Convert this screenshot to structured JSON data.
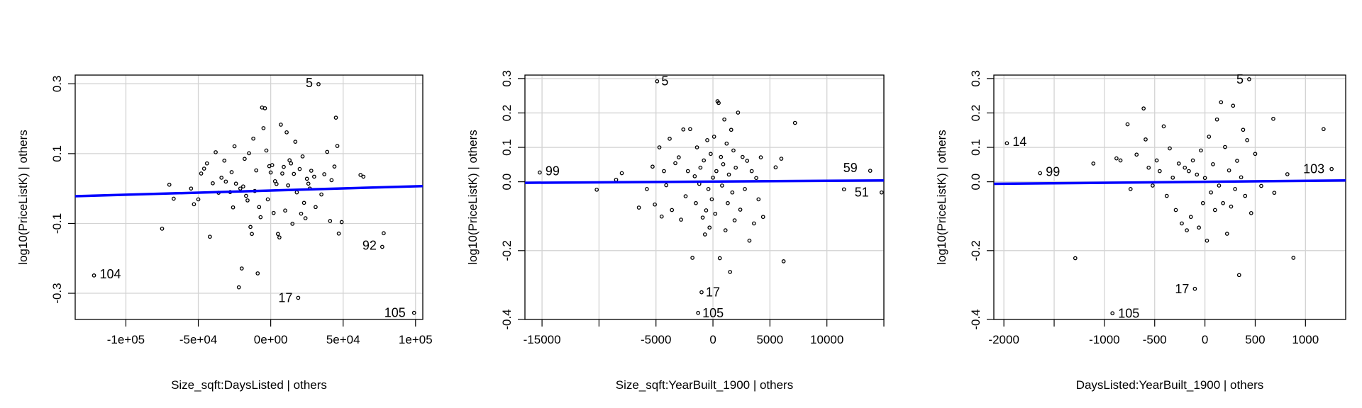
{
  "chart_data": [
    {
      "type": "scatter",
      "title": "",
      "xlabel": "Size_sqft:DaysListed | others",
      "ylabel": "log10(PriceListK)  | others",
      "xlim": [
        -135000,
        105000
      ],
      "ylim": [
        -0.375,
        0.325
      ],
      "xticks": [
        -100000,
        -50000,
        0,
        50000,
        100000
      ],
      "xtick_labels": [
        "-1e+05",
        "-5e+04",
        "0e+00",
        "5e+04",
        "1e+05"
      ],
      "yticks": [
        -0.3,
        -0.1,
        0.1,
        0.3
      ],
      "ytick_labels": [
        "-0.3",
        "-0.1",
        "0.1",
        "0.3"
      ],
      "grid": true,
      "fit_line": {
        "color": "#0000ff",
        "x": [
          -135000,
          105000
        ],
        "y": [
          -0.022,
          0.007
        ]
      },
      "points": [
        {
          "x": -122000,
          "y": -0.249,
          "label": "104"
        },
        {
          "x": -75000,
          "y": -0.115
        },
        {
          "x": -70000,
          "y": 0.011
        },
        {
          "x": -67000,
          "y": -0.029
        },
        {
          "x": -55000,
          "y": 0.0
        },
        {
          "x": -53000,
          "y": -0.045
        },
        {
          "x": -50000,
          "y": -0.031
        },
        {
          "x": -48000,
          "y": 0.043
        },
        {
          "x": -46000,
          "y": 0.057
        },
        {
          "x": -44000,
          "y": 0.072
        },
        {
          "x": -42000,
          "y": -0.138
        },
        {
          "x": -40000,
          "y": 0.015
        },
        {
          "x": -38000,
          "y": 0.104
        },
        {
          "x": -36000,
          "y": -0.012
        },
        {
          "x": -34000,
          "y": 0.031
        },
        {
          "x": -32000,
          "y": 0.08
        },
        {
          "x": -31000,
          "y": 0.02
        },
        {
          "x": -28000,
          "y": -0.01
        },
        {
          "x": -27000,
          "y": 0.047
        },
        {
          "x": -26000,
          "y": -0.054
        },
        {
          "x": -25000,
          "y": 0.121
        },
        {
          "x": -24000,
          "y": 0.014
        },
        {
          "x": -22000,
          "y": -0.283
        },
        {
          "x": -21000,
          "y": 0.0
        },
        {
          "x": -20000,
          "y": -0.229
        },
        {
          "x": -19000,
          "y": 0.006
        },
        {
          "x": -18000,
          "y": 0.085
        },
        {
          "x": -17000,
          "y": -0.021
        },
        {
          "x": -16000,
          "y": -0.034
        },
        {
          "x": -15000,
          "y": 0.101
        },
        {
          "x": -14000,
          "y": -0.11
        },
        {
          "x": -13000,
          "y": -0.13
        },
        {
          "x": -12000,
          "y": 0.143
        },
        {
          "x": -11000,
          "y": -0.007
        },
        {
          "x": -10000,
          "y": 0.052
        },
        {
          "x": -9000,
          "y": -0.243
        },
        {
          "x": -8000,
          "y": -0.053
        },
        {
          "x": -7000,
          "y": -0.082
        },
        {
          "x": -6000,
          "y": 0.232
        },
        {
          "x": -5000,
          "y": 0.173
        },
        {
          "x": -4000,
          "y": 0.23
        },
        {
          "x": -3000,
          "y": 0.109
        },
        {
          "x": -2000,
          "y": -0.031
        },
        {
          "x": -1000,
          "y": 0.064
        },
        {
          "x": 0,
          "y": 0.046
        },
        {
          "x": 1000,
          "y": 0.067
        },
        {
          "x": 2000,
          "y": -0.07
        },
        {
          "x": 3000,
          "y": 0.021
        },
        {
          "x": 4000,
          "y": 0.013
        },
        {
          "x": 5000,
          "y": -0.13
        },
        {
          "x": 6000,
          "y": -0.14
        },
        {
          "x": 7000,
          "y": 0.183
        },
        {
          "x": 8000,
          "y": 0.043
        },
        {
          "x": 9000,
          "y": 0.062
        },
        {
          "x": 10000,
          "y": -0.063
        },
        {
          "x": 11000,
          "y": 0.161
        },
        {
          "x": 12000,
          "y": 0.009
        },
        {
          "x": 13000,
          "y": 0.081
        },
        {
          "x": 14000,
          "y": 0.072
        },
        {
          "x": 15000,
          "y": -0.101
        },
        {
          "x": 16000,
          "y": 0.042
        },
        {
          "x": 17000,
          "y": 0.134
        },
        {
          "x": 18000,
          "y": -0.011
        },
        {
          "x": 19000,
          "y": -0.313,
          "label": "17"
        },
        {
          "x": 20000,
          "y": 0.056
        },
        {
          "x": 21000,
          "y": -0.072
        },
        {
          "x": 22000,
          "y": 0.092
        },
        {
          "x": 23000,
          "y": -0.041
        },
        {
          "x": 24000,
          "y": -0.085
        },
        {
          "x": 25000,
          "y": 0.028
        },
        {
          "x": 26000,
          "y": 0.014
        },
        {
          "x": 27000,
          "y": 0.0
        },
        {
          "x": 28000,
          "y": 0.051
        },
        {
          "x": 30000,
          "y": 0.034
        },
        {
          "x": 31000,
          "y": -0.053
        },
        {
          "x": 33000,
          "y": 0.299,
          "label": "5"
        },
        {
          "x": 35000,
          "y": -0.017
        },
        {
          "x": 37000,
          "y": 0.041
        },
        {
          "x": 39000,
          "y": 0.105
        },
        {
          "x": 41000,
          "y": -0.093
        },
        {
          "x": 42000,
          "y": 0.024
        },
        {
          "x": 44000,
          "y": 0.063
        },
        {
          "x": 45000,
          "y": 0.203
        },
        {
          "x": 46000,
          "y": 0.122
        },
        {
          "x": 47000,
          "y": -0.129
        },
        {
          "x": 49000,
          "y": -0.096
        },
        {
          "x": 62000,
          "y": 0.039
        },
        {
          "x": 64000,
          "y": 0.034
        },
        {
          "x": 77000,
          "y": -0.167,
          "label": "92"
        },
        {
          "x": 78000,
          "y": -0.128
        },
        {
          "x": 99000,
          "y": -0.356,
          "label": "105"
        }
      ]
    },
    {
      "type": "scatter",
      "title": "",
      "xlabel": "Size_sqft:YearBuilt_1900 | others",
      "ylabel": "log10(PriceListK)  | others",
      "xlim": [
        -16500,
        15000
      ],
      "ylim": [
        -0.4,
        0.31
      ],
      "xticks": [
        -15000,
        -10000,
        -5000,
        0,
        5000,
        10000,
        15000
      ],
      "xtick_labels": [
        "-15000",
        "",
        "-5000",
        "0",
        "5000",
        "10000",
        ""
      ],
      "yticks": [
        -0.4,
        -0.2,
        0.0,
        0.1,
        0.2,
        0.3
      ],
      "ytick_labels": [
        "-0.4",
        "-0.2",
        "0.0",
        "0.1",
        "0.2",
        "0.3"
      ],
      "grid": true,
      "fit_line": {
        "color": "#0000ff",
        "x": [
          -16500,
          15000
        ],
        "y": [
          -0.003,
          0.004
        ]
      },
      "points": [
        {
          "x": -15200,
          "y": 0.027,
          "label": "99"
        },
        {
          "x": -10200,
          "y": -0.023
        },
        {
          "x": -8500,
          "y": 0.006
        },
        {
          "x": -8000,
          "y": 0.025
        },
        {
          "x": -6500,
          "y": -0.075
        },
        {
          "x": -5800,
          "y": -0.021
        },
        {
          "x": -5300,
          "y": 0.044
        },
        {
          "x": -5100,
          "y": -0.066
        },
        {
          "x": -4900,
          "y": 0.292,
          "label": "5"
        },
        {
          "x": -4700,
          "y": 0.1
        },
        {
          "x": -4500,
          "y": -0.101
        },
        {
          "x": -4300,
          "y": 0.031
        },
        {
          "x": -4100,
          "y": -0.01
        },
        {
          "x": -3800,
          "y": 0.125
        },
        {
          "x": -3600,
          "y": -0.082
        },
        {
          "x": -3300,
          "y": 0.054
        },
        {
          "x": -3000,
          "y": 0.071
        },
        {
          "x": -2800,
          "y": -0.11
        },
        {
          "x": -2600,
          "y": 0.152
        },
        {
          "x": -2400,
          "y": -0.042
        },
        {
          "x": -2200,
          "y": 0.031
        },
        {
          "x": -2000,
          "y": 0.153
        },
        {
          "x": -1800,
          "y": -0.221
        },
        {
          "x": -1600,
          "y": 0.016
        },
        {
          "x": -1500,
          "y": -0.062
        },
        {
          "x": -1400,
          "y": 0.1
        },
        {
          "x": -1300,
          "y": -0.381,
          "label": "105"
        },
        {
          "x": -1200,
          "y": -0.006
        },
        {
          "x": -1100,
          "y": 0.041
        },
        {
          "x": -1000,
          "y": -0.321,
          "label": "17"
        },
        {
          "x": -900,
          "y": -0.104
        },
        {
          "x": -800,
          "y": 0.062
        },
        {
          "x": -700,
          "y": -0.153
        },
        {
          "x": -600,
          "y": -0.083
        },
        {
          "x": -500,
          "y": 0.121
        },
        {
          "x": -400,
          "y": -0.021
        },
        {
          "x": -300,
          "y": -0.133
        },
        {
          "x": -200,
          "y": 0.081
        },
        {
          "x": -100,
          "y": -0.051
        },
        {
          "x": 0,
          "y": 0.012
        },
        {
          "x": 100,
          "y": 0.131
        },
        {
          "x": 200,
          "y": -0.093
        },
        {
          "x": 300,
          "y": 0.031
        },
        {
          "x": 400,
          "y": 0.234
        },
        {
          "x": 500,
          "y": 0.229
        },
        {
          "x": 600,
          "y": -0.222
        },
        {
          "x": 700,
          "y": 0.072
        },
        {
          "x": 800,
          "y": -0.011
        },
        {
          "x": 900,
          "y": 0.051
        },
        {
          "x": 1000,
          "y": 0.181
        },
        {
          "x": 1100,
          "y": -0.141
        },
        {
          "x": 1200,
          "y": 0.111
        },
        {
          "x": 1300,
          "y": -0.062
        },
        {
          "x": 1400,
          "y": 0.021
        },
        {
          "x": 1500,
          "y": -0.262
        },
        {
          "x": 1600,
          "y": 0.151
        },
        {
          "x": 1700,
          "y": -0.031
        },
        {
          "x": 1800,
          "y": 0.091
        },
        {
          "x": 1900,
          "y": -0.112
        },
        {
          "x": 2000,
          "y": 0.041
        },
        {
          "x": 2200,
          "y": 0.201
        },
        {
          "x": 2400,
          "y": -0.081
        },
        {
          "x": 2600,
          "y": 0.072
        },
        {
          "x": 2800,
          "y": -0.021
        },
        {
          "x": 3000,
          "y": 0.061
        },
        {
          "x": 3200,
          "y": -0.171
        },
        {
          "x": 3400,
          "y": 0.031
        },
        {
          "x": 3600,
          "y": -0.121
        },
        {
          "x": 3800,
          "y": 0.011
        },
        {
          "x": 4000,
          "y": -0.051
        },
        {
          "x": 4200,
          "y": 0.071
        },
        {
          "x": 4400,
          "y": -0.102
        },
        {
          "x": 5500,
          "y": 0.042
        },
        {
          "x": 6000,
          "y": 0.067
        },
        {
          "x": 6200,
          "y": -0.231
        },
        {
          "x": 7200,
          "y": 0.171
        },
        {
          "x": 11500,
          "y": -0.022
        },
        {
          "x": 13800,
          "y": 0.032,
          "label": "59"
        },
        {
          "x": 14800,
          "y": -0.031,
          "label": "51"
        }
      ]
    },
    {
      "type": "scatter",
      "title": "",
      "xlabel": "DaysListed:YearBuilt_1900 | others",
      "ylabel": "log10(PriceListK)  | others",
      "xlim": [
        -2100,
        1400
      ],
      "ylim": [
        -0.4,
        0.31
      ],
      "xticks": [
        -2000,
        -1500,
        -1000,
        -500,
        0,
        500,
        1000
      ],
      "xtick_labels": [
        "-2000",
        "",
        "-1000",
        "-500",
        "0",
        "500",
        "1000"
      ],
      "yticks": [
        -0.4,
        -0.2,
        0.0,
        0.1,
        0.2,
        0.3
      ],
      "ytick_labels": [
        "-0.4",
        "-0.2",
        "0.0",
        "0.1",
        "0.2",
        "0.3"
      ],
      "grid": true,
      "fit_line": {
        "color": "#0000ff",
        "x": [
          -2100,
          1400
        ],
        "y": [
          -0.006,
          0.004
        ]
      },
      "points": [
        {
          "x": -1970,
          "y": 0.112,
          "label": "14"
        },
        {
          "x": -1640,
          "y": 0.025,
          "label": "99"
        },
        {
          "x": -1290,
          "y": -0.222
        },
        {
          "x": -1110,
          "y": 0.053
        },
        {
          "x": -920,
          "y": -0.382,
          "label": "105"
        },
        {
          "x": -880,
          "y": 0.068
        },
        {
          "x": -840,
          "y": 0.062
        },
        {
          "x": -770,
          "y": 0.167
        },
        {
          "x": -740,
          "y": -0.021
        },
        {
          "x": -680,
          "y": 0.079
        },
        {
          "x": -610,
          "y": 0.213
        },
        {
          "x": -590,
          "y": 0.123
        },
        {
          "x": -560,
          "y": 0.041
        },
        {
          "x": -520,
          "y": -0.011
        },
        {
          "x": -480,
          "y": 0.062
        },
        {
          "x": -450,
          "y": 0.031
        },
        {
          "x": -410,
          "y": 0.161
        },
        {
          "x": -380,
          "y": -0.041
        },
        {
          "x": -350,
          "y": 0.097
        },
        {
          "x": -320,
          "y": 0.012
        },
        {
          "x": -290,
          "y": -0.082
        },
        {
          "x": -260,
          "y": 0.053
        },
        {
          "x": -230,
          "y": -0.121
        },
        {
          "x": -200,
          "y": 0.041
        },
        {
          "x": -180,
          "y": -0.141
        },
        {
          "x": -160,
          "y": 0.031
        },
        {
          "x": -140,
          "y": -0.102
        },
        {
          "x": -120,
          "y": 0.062
        },
        {
          "x": -100,
          "y": -0.311,
          "label": "17"
        },
        {
          "x": -80,
          "y": 0.021
        },
        {
          "x": -60,
          "y": -0.133
        },
        {
          "x": -40,
          "y": 0.091
        },
        {
          "x": -20,
          "y": -0.062
        },
        {
          "x": 0,
          "y": 0.011
        },
        {
          "x": 20,
          "y": -0.171
        },
        {
          "x": 40,
          "y": 0.131
        },
        {
          "x": 60,
          "y": -0.031
        },
        {
          "x": 80,
          "y": 0.051
        },
        {
          "x": 100,
          "y": -0.082
        },
        {
          "x": 120,
          "y": 0.181
        },
        {
          "x": 140,
          "y": -0.011
        },
        {
          "x": 160,
          "y": 0.231
        },
        {
          "x": 180,
          "y": -0.062
        },
        {
          "x": 200,
          "y": 0.101
        },
        {
          "x": 220,
          "y": -0.151
        },
        {
          "x": 240,
          "y": 0.033
        },
        {
          "x": 260,
          "y": -0.072
        },
        {
          "x": 280,
          "y": 0.221
        },
        {
          "x": 300,
          "y": -0.021
        },
        {
          "x": 320,
          "y": 0.061
        },
        {
          "x": 340,
          "y": -0.271
        },
        {
          "x": 360,
          "y": 0.013
        },
        {
          "x": 380,
          "y": 0.151
        },
        {
          "x": 400,
          "y": -0.041
        },
        {
          "x": 420,
          "y": 0.121
        },
        {
          "x": 440,
          "y": 0.298,
          "label": "5"
        },
        {
          "x": 460,
          "y": -0.091
        },
        {
          "x": 500,
          "y": 0.081
        },
        {
          "x": 560,
          "y": -0.012
        },
        {
          "x": 680,
          "y": 0.183
        },
        {
          "x": 690,
          "y": -0.032
        },
        {
          "x": 820,
          "y": 0.022
        },
        {
          "x": 880,
          "y": -0.221
        },
        {
          "x": 1180,
          "y": 0.153
        },
        {
          "x": 1260,
          "y": 0.037,
          "label": "103"
        }
      ]
    }
  ]
}
